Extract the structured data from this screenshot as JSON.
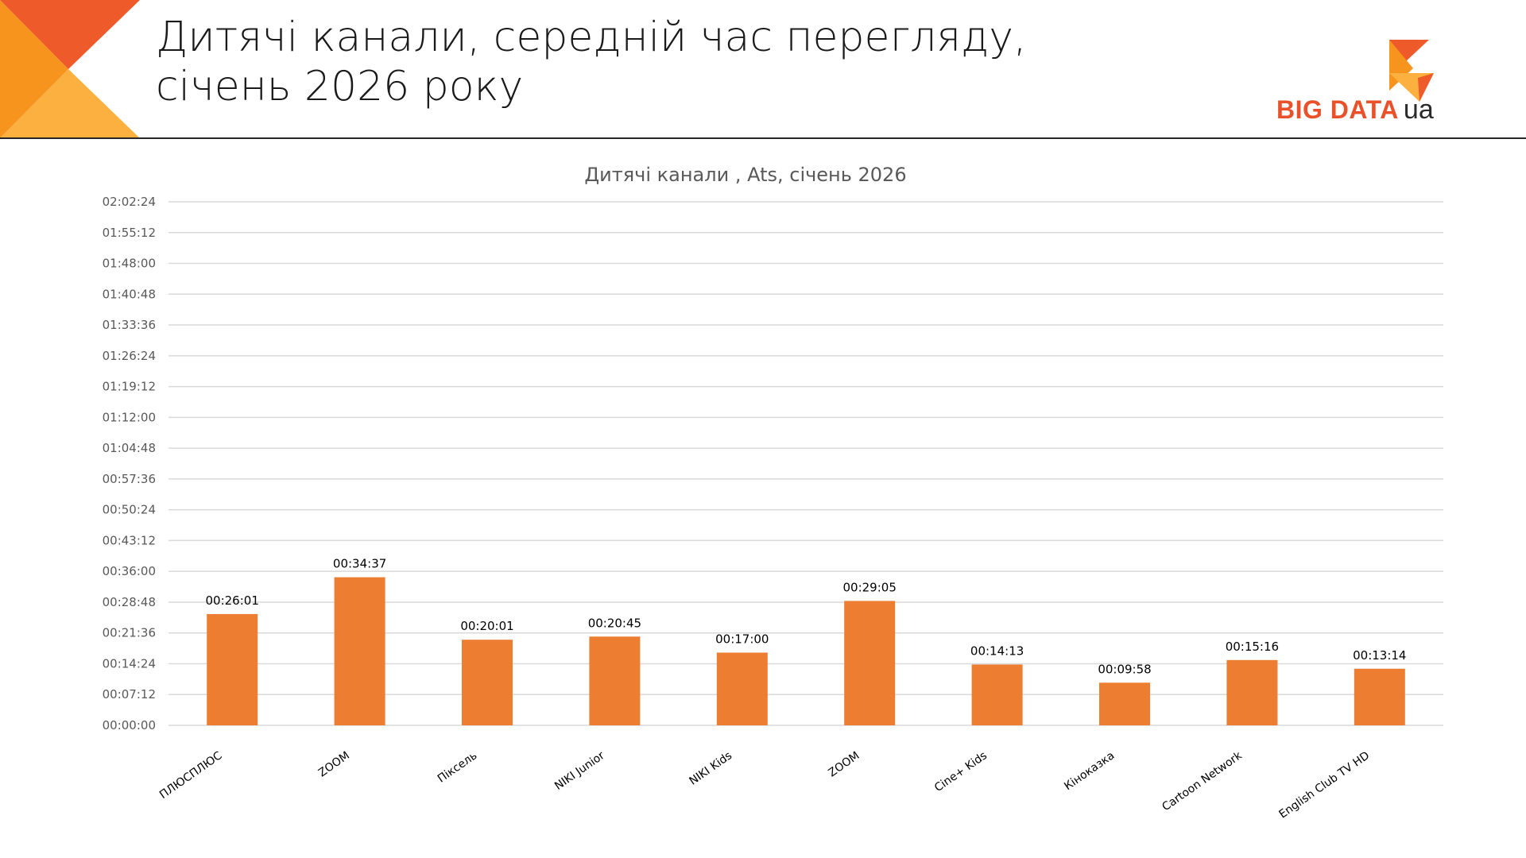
{
  "header": {
    "title_line1": "Дитячі канали, середній час перегляду,",
    "title_line2": "січень 2026 року"
  },
  "logo": {
    "text_big": "BIG DATA",
    "text_small": "ua"
  },
  "colors": {
    "bar": "#ED7D31",
    "accent_dark": "#E8512A",
    "accent_light": "#FBB040",
    "accent_mid": "#F7941E",
    "grid": "#D9D9D9"
  },
  "chart_data": {
    "type": "bar",
    "title": "Дитячі канали , Ats, січень 2026",
    "categories": [
      "ПЛЮСПЛЮС",
      "ZOOM",
      "Піксель",
      "NIKI Junior",
      "NIKI Kids",
      "ZOOM",
      "Cine+ Kids",
      "Кіноказка",
      "Cartoon Network",
      "English Club TV HD"
    ],
    "values": [
      "00:26:01",
      "00:34:37",
      "00:20:01",
      "00:20:45",
      "00:17:00",
      "00:29:05",
      "00:14:13",
      "00:09:58",
      "00:15:16",
      "00:13:14"
    ],
    "value_unit": "hh:mm:ss",
    "y_ticks": [
      "00:00:00",
      "00:07:12",
      "00:14:24",
      "00:21:36",
      "00:28:48",
      "00:36:00",
      "00:43:12",
      "00:50:24",
      "00:57:36",
      "01:04:48",
      "01:12:00",
      "01:19:12",
      "01:26:24",
      "01:33:36",
      "01:40:48",
      "01:48:00",
      "01:55:12",
      "02:02:24"
    ],
    "ylim": [
      "00:00:00",
      "02:02:24"
    ],
    "grid": true,
    "legend": "none"
  }
}
